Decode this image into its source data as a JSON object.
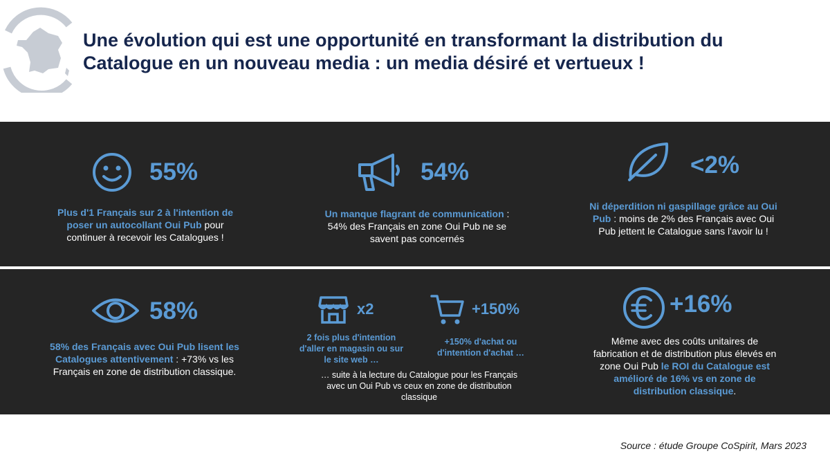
{
  "header": {
    "title_line1": "Une évolution qui est une opportunité en transformant la distribution du",
    "title_line2": "Catalogue en un nouveau media : un media désiré et vertueux !"
  },
  "stats": [
    {
      "icon": "smiley-icon",
      "value": "55%",
      "highlight": "Plus d'1 Français sur 2 à l'intention de poser un autocollant Oui Pub",
      "text": " pour continuer à recevoir les Catalogues !"
    },
    {
      "icon": "megaphone-icon",
      "value": "54%",
      "highlight": "Un manque flagrant de communication",
      "text": " : 54% des Français en zone Oui Pub ne se savent pas concernés"
    },
    {
      "icon": "leaf-icon",
      "value": "<2%",
      "highlight": "Ni déperdition ni gaspillage grâce au Oui Pub",
      "text": " : moins de 2% des Français avec Oui Pub jettent le Catalogue sans l'avoir lu !"
    },
    {
      "icon": "eye-icon",
      "value": "58%",
      "highlight": "58% des Français avec Oui Pub lisent les Catalogues attentivement",
      "text": " : +73% vs les Français en zone de distribution classique."
    },
    {
      "sub": [
        {
          "icon": "store-icon",
          "value": "x2",
          "text": "2 fois plus d'intention d'aller en magasin ou sur le site web …"
        },
        {
          "icon": "cart-icon",
          "value": "+150%",
          "text": "+150% d'achat ou d'intention d'achat …"
        }
      ],
      "text": "… suite à la lecture du Catalogue pour les Français avec un Oui Pub vs ceux en zone de distribution classique"
    },
    {
      "icon": "euro-icon",
      "value": "+16%",
      "text": "Même avec des coûts unitaires de fabrication et de distribution plus élevés en zone Oui Pub ",
      "highlight": "le ROI du Catalogue est amélioré de 16% vs en zone de distribution classique",
      "tail": "."
    }
  ],
  "footer": {
    "source": "Source : étude Groupe CoSpirit, Mars 2023"
  },
  "colors": {
    "navy": "#16264d",
    "accent": "#5b9bd5",
    "panel": "#252525",
    "logo": "#c7ccd4"
  }
}
